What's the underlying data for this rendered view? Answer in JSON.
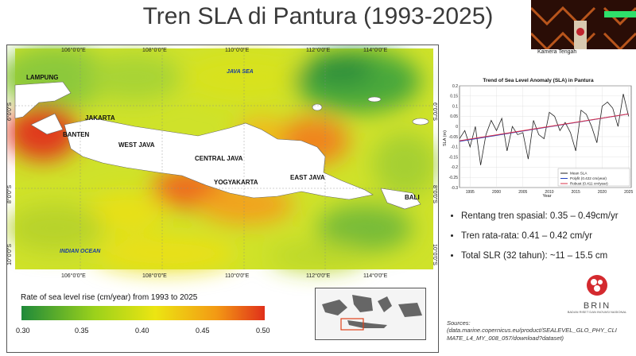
{
  "slide": {
    "title": "Tren SLA di Pantura (1993-2025)"
  },
  "camera": {
    "label": "Kamera Tengah"
  },
  "map": {
    "regions": [
      "LAMPUNG",
      "BANTEN",
      "JAKARTA",
      "WEST JAVA",
      "CENTRAL JAVA",
      "YOGYAKARTA",
      "EAST JAVA",
      "BALI"
    ],
    "seas": [
      "JAVA SEA",
      "INDIAN OCEAN"
    ],
    "lon_ticks": [
      "106°0'0\"E",
      "108°0'0\"E",
      "110°0'0\"E",
      "112°0'0\"E",
      "114°0'0\"E"
    ],
    "lat_ticks": [
      "6°0'0\"S",
      "8°0'0\"S",
      "10°0'0\"S"
    ],
    "legend_title": "Rate of sea level rise (cm/year) from 1993 to 2025",
    "legend_values": [
      "0.30",
      "0.35",
      "0.40",
      "0.45",
      "0.50"
    ],
    "colors": {
      "low": "#2e9e3a",
      "mid": "#e8e010",
      "high": "#e0421a"
    }
  },
  "chart_data": {
    "type": "line",
    "title": "Trend of Sea Level Anomaly (SLA) in Pantura",
    "xlabel": "Year",
    "ylabel": "SLA (m)",
    "xlim": [
      1993,
      2025.5
    ],
    "ylim": [
      -0.3,
      0.2
    ],
    "x_ticks": [
      1995,
      2000,
      2005,
      2010,
      2015,
      2020,
      2025
    ],
    "y_ticks": [
      -0.3,
      -0.25,
      -0.2,
      -0.15,
      -0.1,
      -0.05,
      0,
      0.05,
      0.1,
      0.15,
      0.2
    ],
    "legend": [
      "Mean SLA",
      "Polyfit (0.422 cm/year)",
      "Robust (0.411 cm/year)"
    ],
    "series": [
      {
        "name": "Mean SLA",
        "color": "#222222",
        "x": [
          1993,
          1994,
          1995,
          1996,
          1997,
          1998,
          1999,
          2000,
          2001,
          2002,
          2003,
          2004,
          2005,
          2006,
          2007,
          2008,
          2009,
          2010,
          2011,
          2012,
          2013,
          2014,
          2015,
          2016,
          2017,
          2018,
          2019,
          2020,
          2021,
          2022,
          2023,
          2024,
          2025
        ],
        "values": [
          -0.06,
          -0.02,
          -0.1,
          0.0,
          -0.19,
          -0.04,
          0.03,
          -0.02,
          0.04,
          -0.12,
          0.0,
          -0.04,
          -0.03,
          -0.16,
          0.03,
          -0.04,
          -0.06,
          0.07,
          0.05,
          -0.02,
          0.02,
          -0.03,
          -0.12,
          0.08,
          0.06,
          0.0,
          -0.08,
          0.1,
          0.12,
          0.09,
          0.0,
          0.16,
          0.05
        ]
      },
      {
        "name": "Polyfit (0.422 cm/year)",
        "color": "#1f3fbf",
        "x": [
          1993,
          2025
        ],
        "values": [
          -0.073,
          0.062
        ]
      },
      {
        "name": "Robust (0.411 cm/year)",
        "color": "#d9304a",
        "x": [
          1993,
          2025
        ],
        "values": [
          -0.07,
          0.062
        ]
      }
    ]
  },
  "bullets": [
    "Rentang tren spasial: 0.35 – 0.49cm/yr",
    "Tren rata-rata: 0.41 – 0.42 cm/yr",
    "Total SLR (32 tahun): ~11 – 15.5 cm"
  ],
  "brin": {
    "name": "BRIN",
    "subtitle": "BADAN RISET DAN INOVASI NASIONAL"
  },
  "sources": {
    "label": "Sources:",
    "text": "(data.marine.copernicus.eu/product/SEALEVEL_GLO_PHY_CLI MATE_L4_MY_008_057/download?dataset)"
  }
}
